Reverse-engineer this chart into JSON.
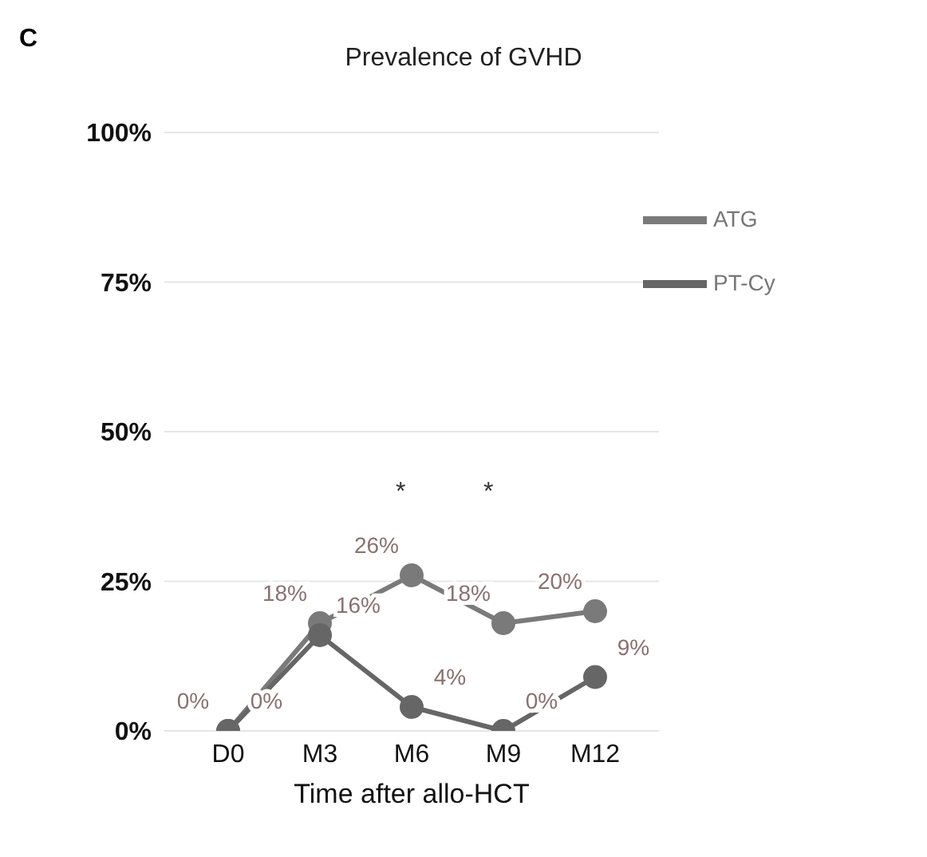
{
  "chart_data": {
    "type": "line",
    "title": "Prevalence of GVHD",
    "xlabel": "Time after allo-HCT",
    "categories": [
      "D0",
      "M3",
      "M6",
      "M9",
      "M12"
    ],
    "series": [
      {
        "name": "ATG",
        "color": "#7a7a7a",
        "values": [
          0,
          18,
          26,
          18,
          20
        ],
        "value_labels": [
          "0%",
          "18%",
          "26%",
          "18%",
          "20%"
        ]
      },
      {
        "name": "PT-Cy",
        "color": "#666666",
        "values": [
          0,
          16,
          4,
          0,
          9
        ],
        "value_labels": [
          "0%",
          "16%",
          "4%",
          "0%",
          "9%"
        ]
      }
    ],
    "ylim": [
      0,
      100
    ],
    "yticks": [
      {
        "value": 0,
        "label": "0%"
      },
      {
        "value": 25,
        "label": "25%"
      },
      {
        "value": 50,
        "label": "50%"
      },
      {
        "value": 75,
        "label": "75%"
      },
      {
        "value": 100,
        "label": "100%"
      }
    ],
    "grid": "y",
    "legend": "top right",
    "marker": "circle",
    "line_style": "solid",
    "annotations": [
      "C",
      "*",
      "*"
    ]
  }
}
